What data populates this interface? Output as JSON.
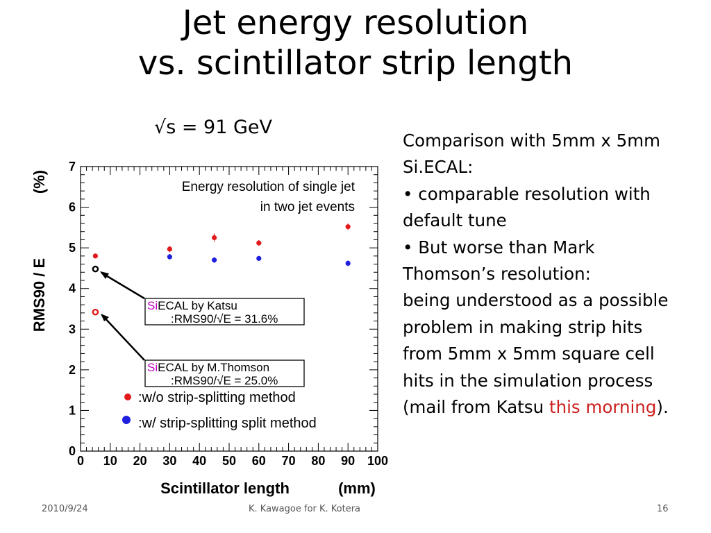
{
  "slide": {
    "title_line1": "Jet energy resolution",
    "title_line2": "vs. scintillator strip length",
    "sqrt_s": "√s = 91 GeV",
    "comparison": {
      "line1": "Comparison with 5mm x 5mm",
      "line2": "Si.ECAL:",
      "line3": "• comparable resolution with",
      "line4": "default tune",
      "line5": "• But worse than Mark",
      "line6": "Thomson’s resolution:",
      "line7": "being understood as a possible",
      "line8": "problem in making strip hits",
      "line9": "from 5mm x 5mm square  cell",
      "line10": "hits in the simulation process",
      "line11_pre": "(mail from Katsu ",
      "line11_highlight": "this morning",
      "line11_post": ")."
    },
    "footer": {
      "date": "2010/9/24",
      "author": "K. Kawagoe for K. Kotera",
      "page": "16"
    }
  },
  "chart_data": {
    "type": "scatter",
    "title": "Energy resolution of single jet in two jet events",
    "title_line1": "Energy resolution of single jet",
    "title_line2": "in two jet events",
    "xlabel": "Scintillator length",
    "xunit": "(mm)",
    "ylabel": "RMS90 / E",
    "yunit": "(%)",
    "xlim": [
      0,
      100
    ],
    "ylim": [
      0,
      7
    ],
    "x_ticks": [
      "0",
      "10",
      "20",
      "30",
      "40",
      "50",
      "60",
      "70",
      "80",
      "90",
      "100"
    ],
    "y_ticks": [
      "0",
      "1",
      "2",
      "3",
      "4",
      "5",
      "6",
      "7"
    ],
    "series": [
      {
        "name": ":w/o strip-splitting method",
        "color": "#e31a1c",
        "x": [
          5,
          30,
          45,
          60,
          90
        ],
        "y": [
          4.8,
          4.97,
          5.25,
          5.12,
          5.52
        ],
        "err": [
          0.06,
          0.08,
          0.1,
          0.07,
          0.08
        ]
      },
      {
        "name": ":w/ strip-splitting split method",
        "color": "#1f1fe0",
        "x": [
          30,
          45,
          60,
          90
        ],
        "y": [
          4.78,
          4.7,
          4.74,
          4.62
        ],
        "err": [
          0.07,
          0.07,
          0.06,
          0.07
        ]
      }
    ],
    "reference_points": [
      {
        "name": "Si.ECAL by Katsu",
        "x": 5,
        "y": 4.48,
        "color": "#000000"
      },
      {
        "name": "Si.ECAL by M.Thomson",
        "x": 5,
        "y": 3.42,
        "color": "#e31a1c"
      }
    ],
    "annotations": [
      {
        "name_prefix": "Si",
        "name_rest": "ECAL by Katsu",
        "value": ":RMS90/√E = 31.6%"
      },
      {
        "name_prefix": "Si",
        "name_rest": "ECAL by M.Thomson",
        "value": ":RMS90/√E = 25.0%"
      }
    ]
  }
}
